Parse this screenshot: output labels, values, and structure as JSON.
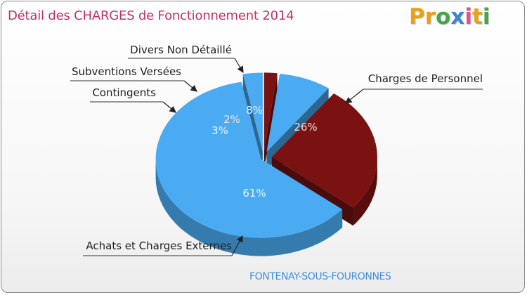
{
  "header": {
    "title": "Détail des CHARGES de Fonctionnement 2014"
  },
  "brand": {
    "letters": [
      "P",
      "r",
      "o",
      "x",
      "i",
      "t",
      "i"
    ],
    "colors": [
      "#e8a21a",
      "#e8a21a",
      "#4aa24a",
      "#3d86d4",
      "#e94e8a",
      "#e8a21a",
      "#4aa24a"
    ]
  },
  "footer": {
    "commune": "FONTENAY-SOUS-FOURONNES"
  },
  "chart_data": {
    "type": "pie",
    "title": "Détail des CHARGES de Fonctionnement 2014",
    "slices": [
      {
        "label": "Charges de Personnel",
        "value": 26,
        "display": "26%",
        "color": "#7a1212"
      },
      {
        "label": "Achats et Charges Externes",
        "value": 61,
        "display": "61%",
        "color": "#4aabf2"
      },
      {
        "label": "Contingents",
        "value": 3,
        "display": "3%",
        "color": "#4aabf2"
      },
      {
        "label": "Subventions Versées",
        "value": 2,
        "display": "2%",
        "color": "#7a1212"
      },
      {
        "label": "Divers Non Détaillé",
        "value": 8,
        "display": "8%",
        "color": "#4aabf2"
      }
    ]
  }
}
